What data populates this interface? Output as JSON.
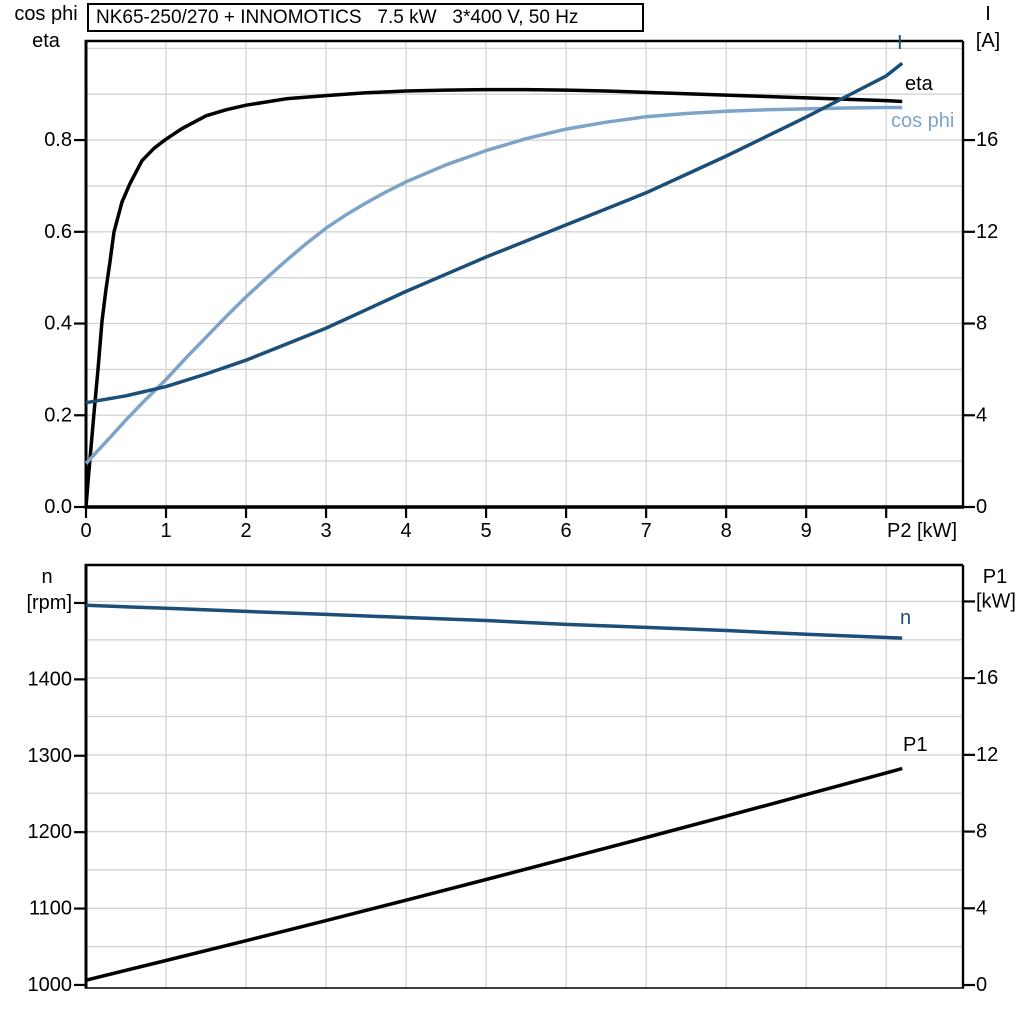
{
  "title": "NK65-250/270 + INNOMOTICS   7.5 kW   3*400 V, 50 Hz",
  "colors": {
    "black": "#000000",
    "dark_blue": "#1b4e79",
    "light_blue": "#7da4c8",
    "grid": "#d3d3d3",
    "axis": "#000000",
    "background": "#ffffff"
  },
  "chart_data": [
    {
      "type": "line",
      "title": "Motor efficiency, power factor and current vs shaft power",
      "x_axis": {
        "min": 0,
        "max": 10.96,
        "grid_step": 1,
        "grid_max": 10,
        "ticks": [
          [
            0,
            "0"
          ],
          [
            1,
            "1"
          ],
          [
            2,
            "2"
          ],
          [
            3,
            "3"
          ],
          [
            4,
            "4"
          ],
          [
            5,
            "5"
          ],
          [
            6,
            "6"
          ],
          [
            7,
            "7"
          ],
          [
            8,
            "8"
          ],
          [
            9,
            "9"
          ],
          [
            10,
            ""
          ]
        ],
        "unit_label": "P2 [kW]"
      },
      "left_axis": {
        "titles": [
          "cos phi",
          "eta"
        ],
        "min": 0,
        "max": 1.016,
        "ticks": [
          [
            0,
            "0.0"
          ],
          [
            0.2,
            "0.2"
          ],
          [
            0.4,
            "0.4"
          ],
          [
            0.6,
            "0.6"
          ],
          [
            0.8,
            "0.8"
          ]
        ],
        "grid_axis": true,
        "grid_step": 0.1,
        "grid_from": 0.1,
        "grid_to": 1.0
      },
      "right_axis": {
        "titles": [
          "I",
          "[A]"
        ],
        "min": 0,
        "max": 20.32,
        "ticks": [
          [
            0,
            "0"
          ],
          [
            4,
            "4"
          ],
          [
            8,
            "8"
          ],
          [
            12,
            "12"
          ],
          [
            16,
            "16"
          ]
        ]
      },
      "series": [
        {
          "name": "eta",
          "label": "eta",
          "axis": "left",
          "color_key": "black",
          "points": [
            [
              0,
              0
            ],
            [
              0.03,
              0.065
            ],
            [
              0.06,
              0.125
            ],
            [
              0.1,
              0.205
            ],
            [
              0.15,
              0.3
            ],
            [
              0.2,
              0.405
            ],
            [
              0.25,
              0.475
            ],
            [
              0.3,
              0.535
            ],
            [
              0.35,
              0.6
            ],
            [
              0.45,
              0.665
            ],
            [
              0.55,
              0.705
            ],
            [
              0.7,
              0.755
            ],
            [
              0.85,
              0.782
            ],
            [
              1.0,
              0.802
            ],
            [
              1.2,
              0.825
            ],
            [
              1.5,
              0.853
            ],
            [
              1.75,
              0.866
            ],
            [
              2,
              0.876
            ],
            [
              2.5,
              0.89
            ],
            [
              3,
              0.897
            ],
            [
              3.5,
              0.903
            ],
            [
              4,
              0.907
            ],
            [
              4.5,
              0.909
            ],
            [
              5,
              0.91
            ],
            [
              5.5,
              0.91
            ],
            [
              6,
              0.909
            ],
            [
              6.5,
              0.907
            ],
            [
              7,
              0.904
            ],
            [
              7.5,
              0.901
            ],
            [
              8,
              0.898
            ],
            [
              8.5,
              0.895
            ],
            [
              9,
              0.892
            ],
            [
              9.5,
              0.889
            ],
            [
              10,
              0.886
            ],
            [
              10.2,
              0.884
            ]
          ]
        },
        {
          "name": "cos-phi",
          "label": "cos phi",
          "axis": "left",
          "color_key": "light_blue",
          "points": [
            [
              0,
              0.095
            ],
            [
              0.25,
              0.142
            ],
            [
              0.5,
              0.19
            ],
            [
              0.75,
              0.235
            ],
            [
              1,
              0.278
            ],
            [
              1.25,
              0.325
            ],
            [
              1.5,
              0.37
            ],
            [
              1.75,
              0.415
            ],
            [
              2,
              0.458
            ],
            [
              2.25,
              0.498
            ],
            [
              2.5,
              0.537
            ],
            [
              2.75,
              0.574
            ],
            [
              3,
              0.608
            ],
            [
              3.25,
              0.637
            ],
            [
              3.5,
              0.663
            ],
            [
              3.75,
              0.687
            ],
            [
              4,
              0.709
            ],
            [
              4.5,
              0.746
            ],
            [
              5,
              0.777
            ],
            [
              5.5,
              0.803
            ],
            [
              6,
              0.824
            ],
            [
              6.5,
              0.839
            ],
            [
              7,
              0.851
            ],
            [
              7.5,
              0.858
            ],
            [
              8,
              0.863
            ],
            [
              8.5,
              0.866
            ],
            [
              9,
              0.868
            ],
            [
              9.5,
              0.87
            ],
            [
              10,
              0.871
            ],
            [
              10.2,
              0.871
            ]
          ]
        },
        {
          "name": "current",
          "label": "I",
          "axis": "right",
          "color_key": "dark_blue",
          "points": [
            [
              0,
              4.55
            ],
            [
              0.5,
              4.85
            ],
            [
              1,
              5.25
            ],
            [
              1.5,
              5.8
            ],
            [
              2,
              6.4
            ],
            [
              2.5,
              7.1
            ],
            [
              3,
              7.8
            ],
            [
              3.5,
              8.6
            ],
            [
              4,
              9.4
            ],
            [
              4.5,
              10.15
            ],
            [
              5,
              10.9
            ],
            [
              5.5,
              11.6
            ],
            [
              6,
              12.3
            ],
            [
              6.5,
              13.0
            ],
            [
              7,
              13.7
            ],
            [
              7.5,
              14.5
            ],
            [
              8,
              15.3
            ],
            [
              8.5,
              16.15
            ],
            [
              9,
              17.0
            ],
            [
              9.5,
              17.9
            ],
            [
              10,
              18.8
            ],
            [
              10.2,
              19.35
            ]
          ]
        }
      ]
    },
    {
      "type": "line",
      "title": "Motor speed and input power vs shaft power",
      "x_axis": {
        "min": 0,
        "max": 10.96,
        "grid_step": 1,
        "grid_max": 10,
        "ticks": [],
        "unit_label": ""
      },
      "left_axis": {
        "titles": [
          "n"
        ],
        "min": 996,
        "max": 1549.7,
        "ticks": [
          [
            1000,
            "1000"
          ],
          [
            1100,
            "1100"
          ],
          [
            1200,
            "1200"
          ],
          [
            1300,
            "1300"
          ],
          [
            1400,
            "1400"
          ],
          [
            1500,
            "[rpm]"
          ]
        ],
        "grid_axis": false
      },
      "right_axis": {
        "titles": [
          "P1"
        ],
        "min": -0.156,
        "max": 21.9,
        "ticks": [
          [
            0,
            "0"
          ],
          [
            4,
            "4"
          ],
          [
            8,
            "8"
          ],
          [
            12,
            "12"
          ],
          [
            16,
            "16"
          ],
          [
            20,
            "[kW]"
          ]
        ],
        "grid_step": 2,
        "grid_from": 2,
        "grid_to": 20
      },
      "series": [
        {
          "name": "speed",
          "label": "n",
          "axis": "left",
          "color_key": "dark_blue",
          "points": [
            [
              0,
              1497
            ],
            [
              1,
              1493
            ],
            [
              2,
              1489
            ],
            [
              3,
              1485
            ],
            [
              4,
              1481
            ],
            [
              5,
              1477
            ],
            [
              6,
              1472
            ],
            [
              7,
              1468
            ],
            [
              8,
              1464
            ],
            [
              9,
              1459
            ],
            [
              10.2,
              1454
            ]
          ]
        },
        {
          "name": "input-power",
          "label": "P1",
          "axis": "right",
          "color_key": "black",
          "points": [
            [
              0,
              0.25
            ],
            [
              1,
              1.28
            ],
            [
              2,
              2.31
            ],
            [
              3,
              3.36
            ],
            [
              4,
              4.42
            ],
            [
              5,
              5.5
            ],
            [
              6,
              6.59
            ],
            [
              7,
              7.69
            ],
            [
              8,
              8.8
            ],
            [
              9,
              9.93
            ],
            [
              10,
              11.06
            ],
            [
              10.2,
              11.29
            ]
          ]
        }
      ]
    }
  ]
}
